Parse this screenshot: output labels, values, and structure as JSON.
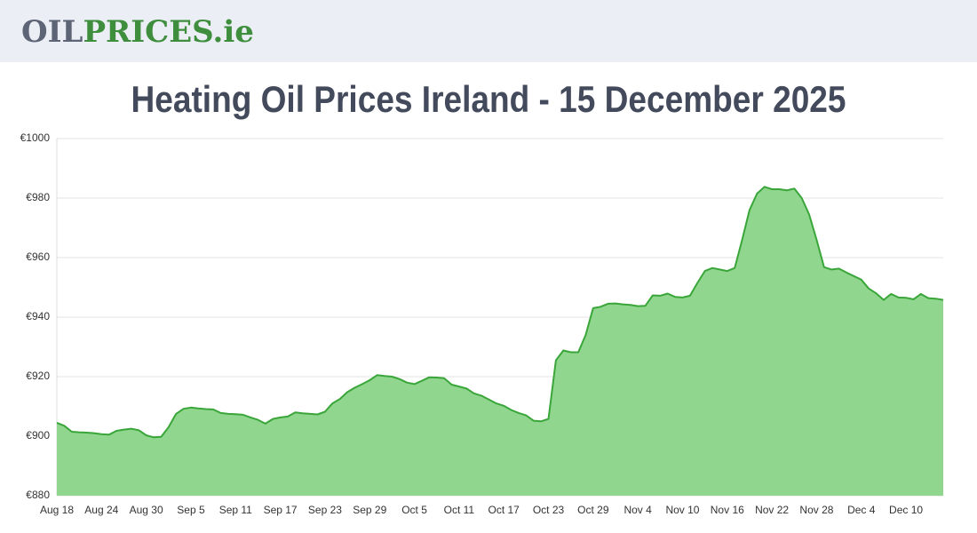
{
  "header": {
    "logo_part1": "OIL",
    "logo_part2": "PRICES.ie"
  },
  "chart_data": {
    "type": "area",
    "title": "Heating Oil Prices Ireland - 15 December 2025",
    "categories": [
      "Aug 18",
      null,
      null,
      null,
      null,
      null,
      "Aug 24",
      null,
      null,
      null,
      null,
      null,
      "Aug 30",
      null,
      null,
      null,
      null,
      null,
      "Sep 5",
      null,
      null,
      null,
      null,
      null,
      "Sep 11",
      null,
      null,
      null,
      null,
      null,
      "Sep 17",
      null,
      null,
      null,
      null,
      null,
      "Sep 23",
      null,
      null,
      null,
      null,
      null,
      "Sep 29",
      null,
      null,
      null,
      null,
      null,
      "Oct 5",
      null,
      null,
      null,
      null,
      null,
      "Oct 11",
      null,
      null,
      null,
      null,
      null,
      "Oct 17",
      null,
      null,
      null,
      null,
      null,
      "Oct 23",
      null,
      null,
      null,
      null,
      null,
      "Oct 29",
      null,
      null,
      null,
      null,
      null,
      "Nov 4",
      null,
      null,
      null,
      null,
      null,
      "Nov 10",
      null,
      null,
      null,
      null,
      null,
      "Nov 16",
      null,
      null,
      null,
      null,
      null,
      "Nov 22",
      null,
      null,
      null,
      null,
      null,
      "Nov 28",
      null,
      null,
      null,
      null,
      null,
      "Dec 4",
      null,
      null,
      null,
      null,
      null,
      "Dec 10",
      null,
      null,
      null,
      null,
      null
    ],
    "series": [
      {
        "color": "#3aa63a",
        "fill": "#90d68e",
        "values": [
          904.5,
          903.5,
          901.5,
          901.3,
          901.2,
          901,
          900.7,
          900.5,
          901.8,
          902.2,
          902.5,
          902,
          900.3,
          899.6,
          899.8,
          903,
          907.5,
          909.2,
          909.6,
          909.3,
          909.1,
          909,
          907.8,
          907.5,
          907.4,
          907.2,
          906.3,
          905.5,
          904.2,
          905.8,
          906.3,
          906.6,
          908,
          907.7,
          907.5,
          907.3,
          908.2,
          911,
          912.5,
          914.8,
          916.3,
          917.5,
          918.8,
          920.5,
          920.2,
          920,
          919.2,
          918,
          917.5,
          918.6,
          919.8,
          919.7,
          919.5,
          917.3,
          916.7,
          916,
          914.4,
          913.6,
          912.3,
          911,
          910.2,
          908.8,
          907.8,
          907,
          905.2,
          905,
          905.8,
          925.5,
          928.8,
          928.2,
          928.2,
          934,
          943,
          943.5,
          944.5,
          944.6,
          944.3,
          944.1,
          943.7,
          943.8,
          947.3,
          947.2,
          947.9,
          946.8,
          946.6,
          947.2,
          951.5,
          955.5,
          956.5,
          956,
          955.5,
          956.5,
          966,
          976,
          981.5,
          983.8,
          983,
          983,
          982.6,
          983.2,
          980,
          974.5,
          966,
          956.8,
          956,
          956.3,
          955,
          953.8,
          952.6,
          949.6,
          948,
          945.8,
          947.8,
          946.6,
          946.5,
          946,
          947.8,
          946.4,
          946.2,
          945.8
        ]
      }
    ],
    "ylim": [
      880,
      1000
    ],
    "yticks": [
      {
        "value": 880,
        "label": "€880"
      },
      {
        "value": 900,
        "label": "€900"
      },
      {
        "value": 920,
        "label": "€920"
      },
      {
        "value": 940,
        "label": "€940"
      },
      {
        "value": 960,
        "label": "€960"
      },
      {
        "value": 980,
        "label": "€980"
      },
      {
        "value": 1000,
        "label": "€1000"
      }
    ],
    "grid": true
  }
}
